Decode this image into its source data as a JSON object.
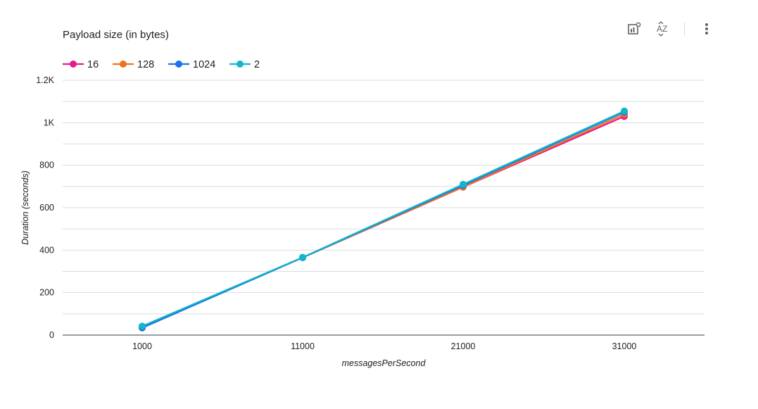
{
  "toolbar": {
    "icons": [
      "chart-edit-icon",
      "sort-az-icon",
      "more-vert-icon"
    ]
  },
  "chart_data": {
    "type": "line",
    "title": "Payload size (in bytes)",
    "xlabel": "messagesPerSecond",
    "ylabel": "Duration (seconds)",
    "categories": [
      "1000",
      "11000",
      "21000",
      "31000"
    ],
    "ylim": [
      0,
      1200
    ],
    "yticks": [
      {
        "value": 0,
        "label": "0"
      },
      {
        "value": 200,
        "label": "200"
      },
      {
        "value": 400,
        "label": "400"
      },
      {
        "value": 600,
        "label": "600"
      },
      {
        "value": 800,
        "label": "800"
      },
      {
        "value": 1000,
        "label": "1K"
      },
      {
        "value": 1200,
        "label": "1.2K"
      }
    ],
    "grid": true,
    "legend_position": "top-left",
    "series": [
      {
        "name": "16",
        "color": "#e8198b",
        "values": [
          35,
          365,
          697,
          1030
        ]
      },
      {
        "name": "128",
        "color": "#f07218",
        "values": [
          36,
          365,
          698,
          1040
        ]
      },
      {
        "name": "1024",
        "color": "#1a73e8",
        "values": [
          34,
          365,
          705,
          1050
        ]
      },
      {
        "name": "2",
        "color": "#12b5cb",
        "values": [
          42,
          366,
          710,
          1055
        ]
      }
    ]
  }
}
